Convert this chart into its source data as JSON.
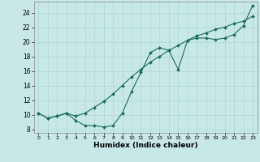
{
  "xlabel": "Humidex (Indice chaleur)",
  "ylabel": "",
  "bg_color": "#c8e8e8",
  "grid_color": "#b0d8d8",
  "line_color": "#1a6b5a",
  "xlim": [
    -0.5,
    23.5
  ],
  "ylim": [
    7.5,
    25.5
  ],
  "yticks": [
    8,
    10,
    12,
    14,
    16,
    18,
    20,
    22,
    24
  ],
  "xticks": [
    0,
    1,
    2,
    3,
    4,
    5,
    6,
    7,
    8,
    9,
    10,
    11,
    12,
    13,
    14,
    15,
    16,
    17,
    18,
    19,
    20,
    21,
    22,
    23
  ],
  "line1_x": [
    0,
    1,
    2,
    3,
    4,
    5,
    6,
    7,
    8,
    9,
    10,
    11,
    12,
    13,
    14,
    15,
    16,
    17,
    18,
    19,
    20,
    21,
    22,
    23
  ],
  "line1_y": [
    10.2,
    9.5,
    9.8,
    10.2,
    9.2,
    8.5,
    8.5,
    8.3,
    8.5,
    10.2,
    13.2,
    15.8,
    18.5,
    19.2,
    18.8,
    16.2,
    20.2,
    20.5,
    20.5,
    20.3,
    20.5,
    21.0,
    22.2,
    25.0
  ],
  "line2_x": [
    0,
    1,
    2,
    3,
    4,
    5,
    6,
    7,
    8,
    9,
    10,
    11,
    12,
    13,
    14,
    15,
    16,
    17,
    18,
    19,
    20,
    21,
    22,
    23
  ],
  "line2_y": [
    10.2,
    9.5,
    9.8,
    10.2,
    9.8,
    10.2,
    11.0,
    11.8,
    12.8,
    14.0,
    15.2,
    16.2,
    17.2,
    18.0,
    18.8,
    19.5,
    20.2,
    20.8,
    21.2,
    21.7,
    22.0,
    22.5,
    22.8,
    23.5
  ]
}
